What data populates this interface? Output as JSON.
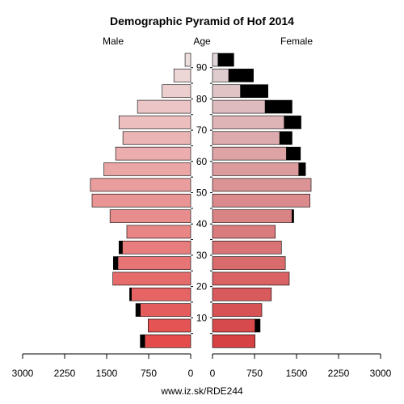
{
  "chart_data": {
    "type": "bar",
    "title": "Demographic Pyramid of Hof 2014",
    "left_label": "Male",
    "center_label": "Age",
    "right_label": "Female",
    "footer": "www.iz.sk/RDE244",
    "age_ticks": [
      "10",
      "20",
      "30",
      "40",
      "50",
      "60",
      "70",
      "80",
      "90"
    ],
    "x_ticks_left": [
      "3000",
      "2250",
      "1500",
      "750",
      "0"
    ],
    "x_ticks_right": [
      "0",
      "750",
      "1500",
      "2250",
      "3000"
    ],
    "xlim": [
      0,
      3000
    ],
    "age_groups": [
      "0-4",
      "5-9",
      "10-14",
      "15-19",
      "20-24",
      "25-29",
      "30-34",
      "35-39",
      "40-44",
      "45-49",
      "50-54",
      "55-59",
      "60-64",
      "65-69",
      "70-74",
      "75-79",
      "80-84",
      "85-89",
      "90-94"
    ],
    "series": [
      {
        "name": "Male",
        "base": [
          820,
          760,
          900,
          1060,
          1390,
          1300,
          1220,
          1140,
          1440,
          1760,
          1790,
          1550,
          1340,
          1210,
          1280,
          950,
          510,
          300,
          100
        ],
        "extra": [
          80,
          0,
          80,
          30,
          0,
          80,
          60,
          0,
          0,
          0,
          0,
          0,
          0,
          0,
          0,
          0,
          0,
          0,
          0
        ]
      },
      {
        "name": "Female",
        "base": [
          760,
          760,
          880,
          1050,
          1370,
          1300,
          1230,
          1120,
          1420,
          1740,
          1760,
          1540,
          1320,
          1200,
          1280,
          940,
          500,
          290,
          100
        ],
        "extra": [
          0,
          90,
          0,
          0,
          0,
          0,
          0,
          0,
          30,
          0,
          0,
          120,
          250,
          220,
          300,
          480,
          490,
          440,
          280
        ]
      }
    ]
  }
}
